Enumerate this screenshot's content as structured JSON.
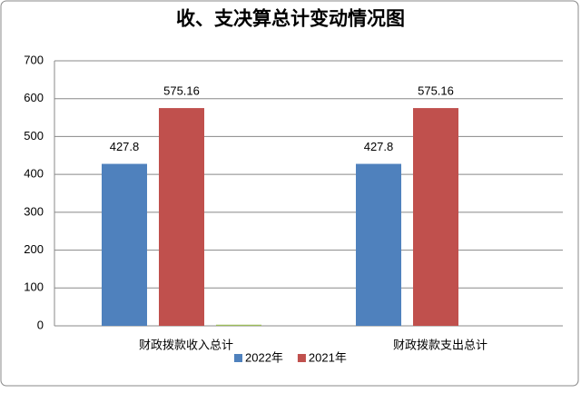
{
  "chart_data": {
    "type": "bar",
    "title": "收、支决算总计变动情况图",
    "categories": [
      "财政拨款收入总计",
      "财政拨款支出总计"
    ],
    "series": [
      {
        "name": "2022年",
        "color": "#4f81bd",
        "values": [
          427.8,
          427.8
        ]
      },
      {
        "name": "2021年",
        "color": "#c0504d",
        "values": [
          575.16,
          575.16
        ]
      },
      {
        "color": "#9bbb59",
        "values": [
          3,
          null
        ]
      }
    ],
    "ylim": [
      0,
      700
    ],
    "yticks": [
      0,
      100,
      200,
      300,
      400,
      500,
      600,
      700
    ],
    "grid": true,
    "legend": "bottom"
  }
}
